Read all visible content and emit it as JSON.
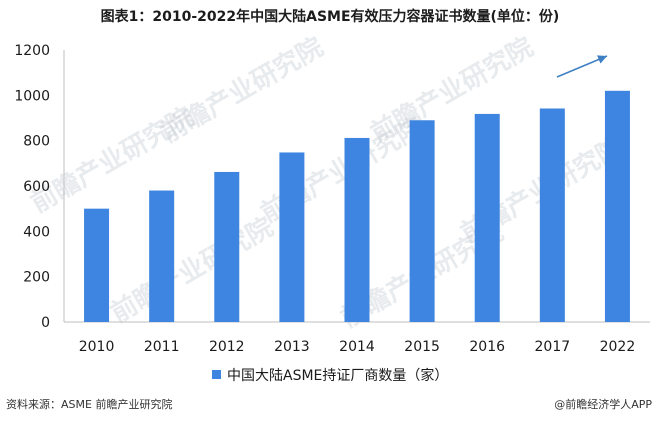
{
  "title": "图表1：2010-2022年中国大陆ASME有效压力容器证书数量(单位：份)",
  "source": "资料来源：ASME 前瞻产业研究院",
  "brand": "@前瞻经济学人APP",
  "watermark": "前瞻产业研究院",
  "colors": {
    "bar": "#3d85e0",
    "axis": "#bfbfbf",
    "arrow": "#3f7fc4"
  },
  "chart_data": {
    "type": "bar",
    "categories": [
      "2010",
      "2011",
      "2012",
      "2013",
      "2014",
      "2015",
      "2016",
      "2017",
      "2022"
    ],
    "series": [
      {
        "name": "中国大陆ASME持证厂商数量（家）",
        "values": [
          500,
          580,
          662,
          748,
          812,
          890,
          918,
          942,
          1020
        ]
      }
    ],
    "ylim": [
      0,
      1200
    ],
    "yticks": [
      0,
      200,
      400,
      600,
      800,
      1000,
      1200
    ],
    "grid": false,
    "legend_position": "bottom",
    "annotation": "upward-trend-arrow"
  }
}
